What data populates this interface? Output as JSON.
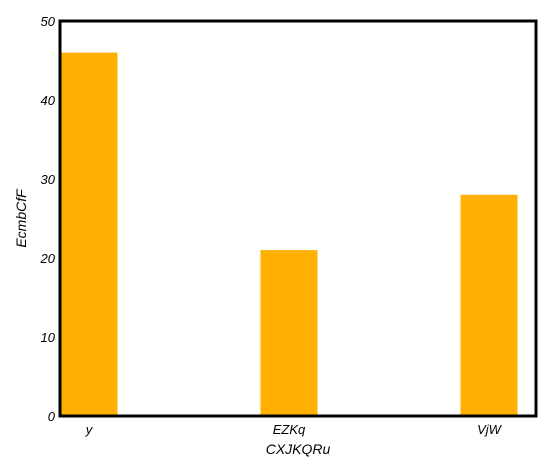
{
  "chart_data": {
    "type": "bar",
    "categories": [
      "y",
      "EZKq",
      "VjW"
    ],
    "values": [
      46,
      21,
      28
    ],
    "title": "",
    "xlabel": "CXJKQRu",
    "ylabel": "EcmbCfF",
    "ylim": [
      0,
      50
    ],
    "yticks": [
      0,
      10,
      20,
      30,
      40,
      50
    ],
    "grid": false,
    "bar_color": "#FFB000"
  }
}
